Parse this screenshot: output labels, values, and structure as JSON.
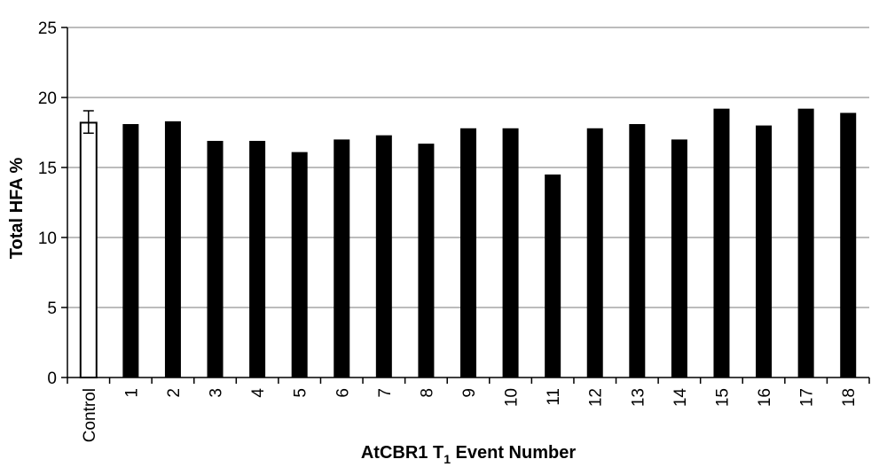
{
  "chart_data": {
    "type": "bar",
    "categories": [
      "Control",
      "1",
      "2",
      "3",
      "4",
      "5",
      "6",
      "7",
      "8",
      "9",
      "10",
      "11",
      "12",
      "13",
      "14",
      "15",
      "16",
      "17",
      "18"
    ],
    "values": [
      18.2,
      18.1,
      18.3,
      16.9,
      16.9,
      16.1,
      17.0,
      17.3,
      16.7,
      17.8,
      17.8,
      14.5,
      17.8,
      18.1,
      17.0,
      19.2,
      18.0,
      19.2,
      18.9
    ],
    "error": {
      "category": "Control",
      "minus": 0.75,
      "plus": 0.85
    },
    "colors": {
      "control_fill": "#ffffff",
      "event_fill": "#000000",
      "bar_stroke": "#000000",
      "grid": "#a6a6a6"
    },
    "ylim": [
      0,
      25
    ],
    "yticks": [
      0,
      5,
      10,
      15,
      20,
      25
    ],
    "grid": true,
    "ylabel": "Total HFA %",
    "xlabel": {
      "prefix": "AtCBR1 T",
      "subscript": "1",
      "suffix": " Event Number"
    }
  }
}
